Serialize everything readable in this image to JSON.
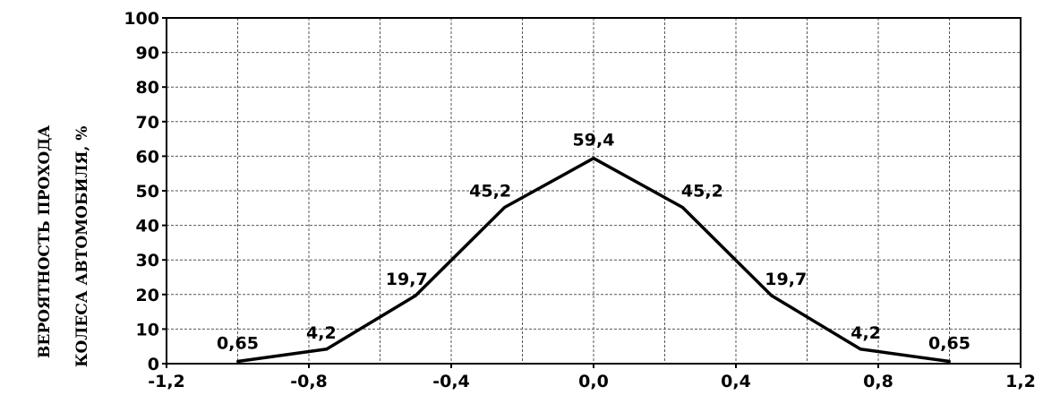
{
  "chart_data": {
    "type": "line",
    "ylabel_lines": [
      "ВЕРОЯТНОСТЬ ПРОХОДА",
      "КОЛЕСА АВТОМОБИЛЯ, %"
    ],
    "xlim": [
      -1.2,
      1.2
    ],
    "ylim": [
      0,
      100
    ],
    "x_ticks": [
      -1.2,
      -0.8,
      -0.4,
      0.0,
      0.4,
      0.8,
      1.2
    ],
    "x_tick_labels": [
      "-1,2",
      "-0,8",
      "-0,4",
      "0,0",
      "0,4",
      "0,8",
      "1,2"
    ],
    "y_ticks": [
      0,
      10,
      20,
      30,
      40,
      50,
      60,
      70,
      80,
      90,
      100
    ],
    "y_tick_labels": [
      "0",
      "10",
      "20",
      "30",
      "40",
      "50",
      "60",
      "70",
      "80",
      "90",
      "100"
    ],
    "x_minor_gridlines": [
      -1.0,
      -0.6,
      -0.2,
      0.2,
      0.6,
      1.0
    ],
    "grid": true,
    "series": [
      {
        "x": [
          -1.0,
          -0.75,
          -0.5,
          -0.25,
          0.0,
          0.25,
          0.5,
          0.75,
          1.0
        ],
        "values": [
          0.65,
          4.2,
          19.7,
          45.2,
          59.4,
          45.2,
          19.7,
          4.2,
          0.65
        ],
        "data_labels": [
          "0,65",
          "4,2",
          "19,7",
          "45,2",
          "59,4",
          "45,2",
          "19,7",
          "4,2",
          "0,65"
        ]
      }
    ],
    "line_color": "#000000",
    "grid_color": "#555555"
  }
}
